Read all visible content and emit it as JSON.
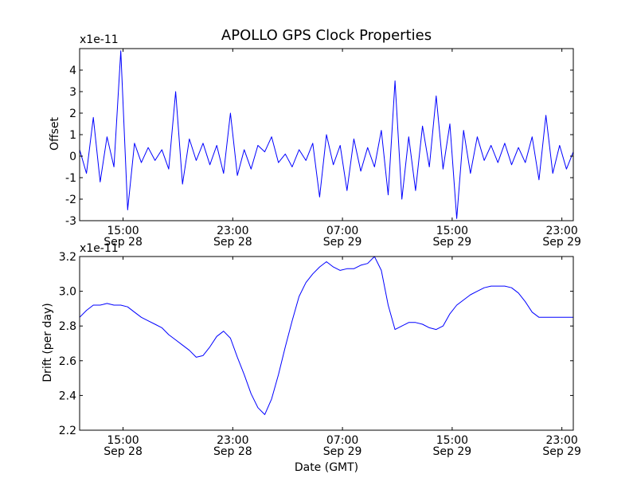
{
  "chart_data": [
    {
      "type": "line",
      "title": "APOLLO GPS Clock Properties",
      "ylabel": "Offset",
      "xlabel": "",
      "scale_label": "x1e-11",
      "xlim": [
        "2013-09-28T11:50",
        "2013-09-29T23:50"
      ],
      "ylim": [
        -3,
        5
      ],
      "yticks": [
        -3,
        -2,
        -1,
        0,
        1,
        2,
        3,
        4
      ],
      "ytick_labels": [
        "-3",
        "-2",
        "-1",
        "0",
        "1",
        "2",
        "3",
        "4"
      ],
      "xticks": [
        {
          "t": "2013-09-28T15:00",
          "time": "15:00",
          "date": "Sep 28"
        },
        {
          "t": "2013-09-28T23:00",
          "time": "23:00",
          "date": "Sep 28"
        },
        {
          "t": "2013-09-29T07:00",
          "time": "07:00",
          "date": "Sep 29"
        },
        {
          "t": "2013-09-29T15:00",
          "time": "15:00",
          "date": "Sep 29"
        },
        {
          "t": "2013-09-29T23:00",
          "time": "23:00",
          "date": "Sep 29"
        }
      ],
      "grid": false,
      "color": "#0000ff",
      "series": [
        {
          "x": [
            "2013-09-28T11:50",
            "2013-09-28T12:20",
            "2013-09-28T12:50",
            "2013-09-28T13:20",
            "2013-09-28T13:50",
            "2013-09-28T14:20",
            "2013-09-28T14:50",
            "2013-09-28T15:20",
            "2013-09-28T15:50",
            "2013-09-28T16:20",
            "2013-09-28T16:50",
            "2013-09-28T17:20",
            "2013-09-28T17:50",
            "2013-09-28T18:20",
            "2013-09-28T18:50",
            "2013-09-28T19:20",
            "2013-09-28T19:50",
            "2013-09-28T20:20",
            "2013-09-28T20:50",
            "2013-09-28T21:20",
            "2013-09-28T21:50",
            "2013-09-28T22:20",
            "2013-09-28T22:50",
            "2013-09-28T23:20",
            "2013-09-28T23:50",
            "2013-09-29T00:20",
            "2013-09-29T00:50",
            "2013-09-29T01:20",
            "2013-09-29T01:50",
            "2013-09-29T02:20",
            "2013-09-29T02:50",
            "2013-09-29T03:20",
            "2013-09-29T03:50",
            "2013-09-29T04:20",
            "2013-09-29T04:50",
            "2013-09-29T05:20",
            "2013-09-29T05:50",
            "2013-09-29T06:20",
            "2013-09-29T06:50",
            "2013-09-29T07:20",
            "2013-09-29T07:50",
            "2013-09-29T08:20",
            "2013-09-29T08:50",
            "2013-09-29T09:20",
            "2013-09-29T09:50",
            "2013-09-29T10:20",
            "2013-09-29T10:50",
            "2013-09-29T11:20",
            "2013-09-29T11:50",
            "2013-09-29T12:20",
            "2013-09-29T12:50",
            "2013-09-29T13:20",
            "2013-09-29T13:50",
            "2013-09-29T14:20",
            "2013-09-29T14:50",
            "2013-09-29T15:20",
            "2013-09-29T15:50",
            "2013-09-29T16:20",
            "2013-09-29T16:50",
            "2013-09-29T17:20",
            "2013-09-29T17:50",
            "2013-09-29T18:20",
            "2013-09-29T18:50",
            "2013-09-29T19:20",
            "2013-09-29T19:50",
            "2013-09-29T20:20",
            "2013-09-29T20:50",
            "2013-09-29T21:20",
            "2013-09-29T21:50",
            "2013-09-29T22:20",
            "2013-09-29T22:50",
            "2013-09-29T23:20",
            "2013-09-29T23:50"
          ],
          "values": [
            0.3,
            -0.8,
            1.8,
            -1.2,
            0.9,
            -0.5,
            4.9,
            -2.5,
            0.6,
            -0.3,
            0.4,
            -0.2,
            0.3,
            -0.6,
            3.0,
            -1.3,
            0.8,
            -0.2,
            0.6,
            -0.4,
            0.5,
            -0.8,
            2.0,
            -0.9,
            0.3,
            -0.6,
            0.5,
            0.2,
            0.9,
            -0.3,
            0.1,
            -0.5,
            0.3,
            -0.2,
            0.6,
            -1.9,
            1.0,
            -0.4,
            0.5,
            -1.6,
            0.8,
            -0.7,
            0.4,
            -0.5,
            1.2,
            -1.8,
            3.5,
            -2.0,
            0.9,
            -1.6,
            1.4,
            -0.5,
            2.8,
            -0.6,
            1.5,
            -2.9,
            1.2,
            -0.8,
            0.9,
            -0.2,
            0.5,
            -0.3,
            0.6,
            -0.4,
            0.4,
            -0.3,
            0.9,
            -1.1,
            1.9,
            -0.8,
            0.5,
            -0.6,
            0.2
          ]
        }
      ]
    },
    {
      "type": "line",
      "title": "",
      "ylabel": "Drift (per day)",
      "xlabel": "Date (GMT)",
      "scale_label": "x1e-11",
      "xlim": [
        "2013-09-28T11:50",
        "2013-09-29T23:50"
      ],
      "ylim": [
        2.2,
        3.2
      ],
      "yticks": [
        2.2,
        2.4,
        2.6,
        2.8,
        3.0,
        3.2
      ],
      "ytick_labels": [
        "2.2",
        "2.4",
        "2.6",
        "2.8",
        "3.0",
        "3.2"
      ],
      "xticks": [
        {
          "t": "2013-09-28T15:00",
          "time": "15:00",
          "date": "Sep 28"
        },
        {
          "t": "2013-09-28T23:00",
          "time": "23:00",
          "date": "Sep 28"
        },
        {
          "t": "2013-09-29T07:00",
          "time": "07:00",
          "date": "Sep 29"
        },
        {
          "t": "2013-09-29T15:00",
          "time": "15:00",
          "date": "Sep 29"
        },
        {
          "t": "2013-09-29T23:00",
          "time": "23:00",
          "date": "Sep 29"
        }
      ],
      "grid": false,
      "color": "#0000ff",
      "series": [
        {
          "x": [
            "2013-09-28T11:50",
            "2013-09-28T12:20",
            "2013-09-28T12:50",
            "2013-09-28T13:20",
            "2013-09-28T13:50",
            "2013-09-28T14:20",
            "2013-09-28T14:50",
            "2013-09-28T15:20",
            "2013-09-28T15:50",
            "2013-09-28T16:20",
            "2013-09-28T16:50",
            "2013-09-28T17:20",
            "2013-09-28T17:50",
            "2013-09-28T18:20",
            "2013-09-28T18:50",
            "2013-09-28T19:20",
            "2013-09-28T19:50",
            "2013-09-28T20:20",
            "2013-09-28T20:50",
            "2013-09-28T21:20",
            "2013-09-28T21:50",
            "2013-09-28T22:20",
            "2013-09-28T22:50",
            "2013-09-28T23:20",
            "2013-09-28T23:50",
            "2013-09-29T00:20",
            "2013-09-29T00:50",
            "2013-09-29T01:20",
            "2013-09-29T01:50",
            "2013-09-29T02:20",
            "2013-09-29T02:50",
            "2013-09-29T03:20",
            "2013-09-29T03:50",
            "2013-09-29T04:20",
            "2013-09-29T04:50",
            "2013-09-29T05:20",
            "2013-09-29T05:50",
            "2013-09-29T06:20",
            "2013-09-29T06:50",
            "2013-09-29T07:20",
            "2013-09-29T07:50",
            "2013-09-29T08:20",
            "2013-09-29T08:50",
            "2013-09-29T09:20",
            "2013-09-29T09:50",
            "2013-09-29T10:20",
            "2013-09-29T10:50",
            "2013-09-29T11:20",
            "2013-09-29T11:50",
            "2013-09-29T12:20",
            "2013-09-29T12:50",
            "2013-09-29T13:20",
            "2013-09-29T13:50",
            "2013-09-29T14:20",
            "2013-09-29T14:50",
            "2013-09-29T15:20",
            "2013-09-29T15:50",
            "2013-09-29T16:20",
            "2013-09-29T16:50",
            "2013-09-29T17:20",
            "2013-09-29T17:50",
            "2013-09-29T18:20",
            "2013-09-29T18:50",
            "2013-09-29T19:20",
            "2013-09-29T19:50",
            "2013-09-29T20:20",
            "2013-09-29T20:50",
            "2013-09-29T21:20",
            "2013-09-29T21:50",
            "2013-09-29T22:20",
            "2013-09-29T22:50",
            "2013-09-29T23:20",
            "2013-09-29T23:50"
          ],
          "values": [
            2.85,
            2.89,
            2.92,
            2.92,
            2.93,
            2.92,
            2.92,
            2.91,
            2.88,
            2.85,
            2.83,
            2.81,
            2.79,
            2.75,
            2.72,
            2.69,
            2.66,
            2.62,
            2.63,
            2.68,
            2.74,
            2.77,
            2.73,
            2.62,
            2.52,
            2.41,
            2.33,
            2.29,
            2.38,
            2.52,
            2.68,
            2.83,
            2.97,
            3.05,
            3.1,
            3.14,
            3.17,
            3.14,
            3.12,
            3.13,
            3.13,
            3.15,
            3.16,
            3.2,
            3.12,
            2.92,
            2.78,
            2.8,
            2.82,
            2.82,
            2.81,
            2.79,
            2.78,
            2.8,
            2.87,
            2.92,
            2.95,
            2.98,
            3.0,
            3.02,
            3.03,
            3.03,
            3.03,
            3.02,
            2.99,
            2.94,
            2.88,
            2.85,
            2.85,
            2.85,
            2.85,
            2.85,
            2.85
          ]
        }
      ]
    }
  ]
}
